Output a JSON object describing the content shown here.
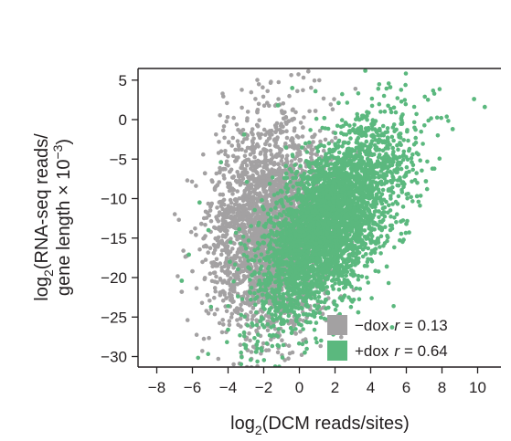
{
  "chart_data": {
    "type": "scatter",
    "xlabel": {
      "main": "log",
      "sub": "2",
      "rest": "(DCM reads/sites)"
    },
    "ylabel": {
      "line1_main": "log",
      "line1_sub": "2",
      "line1_rest": "(RNA-seq reads/",
      "line2_main": "gene length × 10",
      "line2_sup": "−3",
      "line2_rest": ")"
    },
    "xlim": [
      -9,
      11.8
    ],
    "ylim": [
      -31.5,
      6.5
    ],
    "xticks": [
      -8,
      -6,
      -4,
      -2,
      0,
      2,
      4,
      6,
      8,
      10
    ],
    "xtick_labels": [
      "−8",
      "−6",
      "−4",
      "−2",
      "0",
      "2",
      "4",
      "6",
      "8",
      "10"
    ],
    "yticks": [
      5,
      0,
      -5,
      -10,
      -15,
      -20,
      -25,
      -30
    ],
    "ytick_labels": [
      "5",
      "0",
      "−5",
      "−10",
      "−15",
      "−20",
      "−25",
      "−30"
    ],
    "grid": false,
    "legend_position": "bottom-right",
    "series": [
      {
        "name": "−dox",
        "r_label": "r",
        "r_value": "= 0.13",
        "color": "#a3a1a2",
        "points": [
          [
            -6.6,
            -21.8
          ],
          [
            -6.0,
            -19.2
          ],
          [
            -5.8,
            -14.6
          ],
          [
            -5.5,
            -13.2
          ],
          [
            -5.0,
            -11.5
          ],
          [
            -4.6,
            -8.3
          ],
          [
            -4.3,
            -9.5
          ],
          [
            -3.9,
            -6.6
          ],
          [
            -3.6,
            -17.6
          ],
          [
            -3.3,
            -25.2
          ],
          [
            -3.0,
            -27.8
          ],
          [
            -2.9,
            -29.2
          ],
          [
            -2.6,
            -4.1
          ],
          [
            -2.3,
            -1.8
          ],
          [
            -1.9,
            -3.1
          ],
          [
            -1.4,
            -2.6
          ],
          [
            -1.0,
            -1.5
          ],
          [
            -0.6,
            -0.2
          ],
          [
            -0.3,
            0.1
          ],
          [
            0.2,
            -1.0
          ],
          [
            0.5,
            -3.4
          ],
          [
            0.9,
            1.1
          ],
          [
            -1.8,
            -12.6
          ],
          [
            -2.5,
            -16.2
          ],
          [
            -3.2,
            -20.5
          ],
          [
            -4.1,
            -22.6
          ],
          [
            -1.2,
            -24.3
          ],
          [
            -0.2,
            -27.1
          ],
          [
            1.3,
            -24.6
          ],
          [
            -5.3,
            -6.8
          ],
          [
            -2.0,
            -8.9
          ],
          [
            -0.8,
            -6.4
          ],
          [
            0.6,
            -22.5
          ],
          [
            -3.7,
            -11.2
          ],
          [
            -4.8,
            -16.9
          ],
          [
            0.5,
            6.1
          ],
          [
            -1.5,
            -19.7
          ],
          [
            -2.8,
            -14.1
          ],
          [
            -3.5,
            -23.9
          ],
          [
            -0.9,
            -10.5
          ]
        ],
        "blob": {
          "cx": -1.6,
          "cy": -13.5,
          "sx": 1.6,
          "sy": 6.8,
          "corr": 0.1
        }
      },
      {
        "name": "+dox",
        "r_label": "r",
        "r_value": "= 0.64",
        "color": "#5bb87e",
        "points": [
          [
            11.8,
            -6.2
          ],
          [
            11.7,
            0.6
          ],
          [
            10.4,
            1.6
          ],
          [
            9.8,
            2.6
          ],
          [
            8.6,
            -1.2
          ],
          [
            7.1,
            -7.8
          ],
          [
            6.3,
            -5.4
          ],
          [
            5.6,
            -2.2
          ],
          [
            5.1,
            4.1
          ],
          [
            3.7,
            6.2
          ],
          [
            0.9,
            3.6
          ],
          [
            1.4,
            0.2
          ],
          [
            2.2,
            2.1
          ],
          [
            -0.4,
            4.0
          ],
          [
            -1.2,
            1.8
          ],
          [
            -3.1,
            -1.9
          ],
          [
            -4.4,
            -5.4
          ],
          [
            -5.6,
            -10.5
          ],
          [
            -6.2,
            -17.1
          ],
          [
            -6.6,
            -20.4
          ],
          [
            -4.0,
            -26.6
          ],
          [
            -2.4,
            -28.5
          ],
          [
            0.3,
            -29.5
          ],
          [
            1.9,
            -27.2
          ],
          [
            3.3,
            -24.4
          ],
          [
            4.9,
            -18.6
          ],
          [
            6.0,
            -13.2
          ],
          [
            6.6,
            -9.7
          ],
          [
            5.2,
            -26.3
          ],
          [
            -5.1,
            -14.0
          ],
          [
            -3.9,
            -18.0
          ],
          [
            -1.9,
            -20.6
          ],
          [
            2.5,
            -21.3
          ],
          [
            4.2,
            -15.5
          ],
          [
            5.7,
            -12.9
          ]
        ],
        "blob": {
          "cx": 1.6,
          "cy": -13.2,
          "sx": 2.0,
          "sy": 6.0,
          "corr": 0.62
        }
      }
    ]
  }
}
